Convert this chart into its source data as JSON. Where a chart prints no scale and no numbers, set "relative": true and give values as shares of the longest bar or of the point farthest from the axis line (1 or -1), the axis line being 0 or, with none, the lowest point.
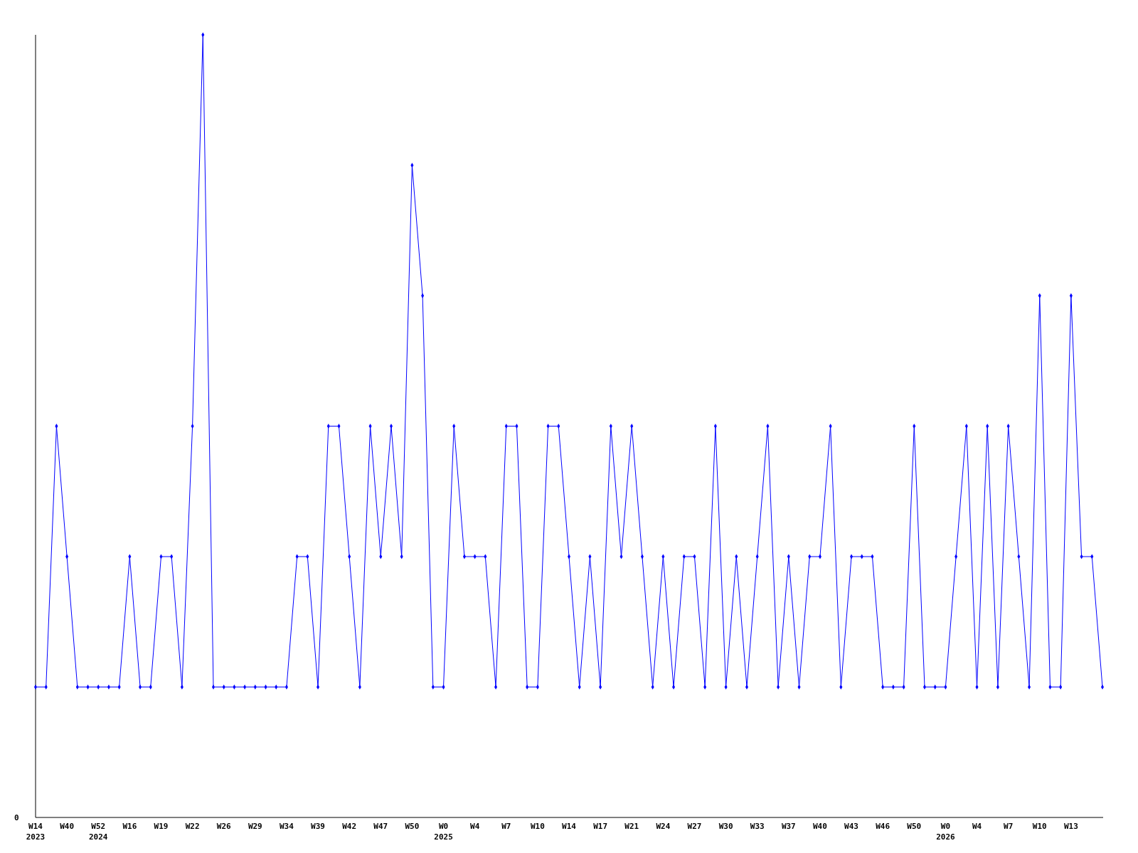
{
  "chart_data": {
    "type": "line",
    "relative": true,
    "marker": "diamond",
    "grid": false,
    "annotations": [
      "0"
    ],
    "categories": [
      "W14\n2023",
      null,
      null,
      "W40",
      null,
      null,
      "W52\n2024",
      null,
      null,
      "W16",
      null,
      null,
      "W19",
      null,
      null,
      "W22",
      null,
      null,
      "W26",
      null,
      null,
      "W29",
      null,
      null,
      "W34",
      null,
      null,
      "W39",
      null,
      null,
      "W42",
      null,
      null,
      "W47",
      null,
      null,
      "W50",
      null,
      null,
      "W0\n2025",
      null,
      null,
      "W4",
      null,
      null,
      "W7",
      null,
      null,
      "W10",
      null,
      null,
      "W14",
      null,
      null,
      "W17",
      null,
      null,
      "W21",
      null,
      null,
      "W24",
      null,
      null,
      "W27",
      null,
      null,
      "W30",
      null,
      null,
      "W33",
      null,
      null,
      "W37",
      null,
      null,
      "W40",
      null,
      null,
      "W43",
      null,
      null,
      "W46",
      null,
      null,
      "W50",
      null,
      null,
      "W0\n2026",
      null,
      null,
      "W4",
      null,
      null,
      "W7",
      null,
      null,
      "W10",
      null,
      null,
      "W13",
      null,
      null,
      null
    ],
    "series": [
      {
        "color": "#0000ff",
        "values": [
          0.1667,
          0.1667,
          0.5,
          0.3333,
          0.1667,
          0.1667,
          0.1667,
          0.1667,
          0.1667,
          0.3333,
          0.1667,
          0.1667,
          0.3333,
          0.3333,
          0.1667,
          0.5,
          1,
          0.1667,
          0.1667,
          0.1667,
          0.1667,
          0.1667,
          0.1667,
          0.1667,
          0.1667,
          0.3333,
          0.3333,
          0.1667,
          0.5,
          0.5,
          0.3333,
          0.1667,
          0.5,
          0.3333,
          0.5,
          0.3333,
          0.8333,
          0.6667,
          0.1667,
          0.1667,
          0.5,
          0.3333,
          0.3333,
          0.3333,
          0.1667,
          0.5,
          0.5,
          0.1667,
          0.1667,
          0.5,
          0.5,
          0.3333,
          0.1667,
          0.3333,
          0.1667,
          0.5,
          0.3333,
          0.5,
          0.3333,
          0.1667,
          0.3333,
          0.1667,
          0.3333,
          0.3333,
          0.1667,
          0.5,
          0.1667,
          0.3333,
          0.1667,
          0.3333,
          0.5,
          0.1667,
          0.3333,
          0.1667,
          0.3333,
          0.3333,
          0.5,
          0.1667,
          0.3333,
          0.3333,
          0.3333,
          0.1667,
          0.1667,
          0.1667,
          0.5,
          0.1667,
          0.1667,
          0.1667,
          0.3333,
          0.5,
          0.1667,
          0.5,
          0.1667,
          0.5,
          0.3333,
          0.1667,
          0.6667,
          0.1667,
          0.1667,
          0.6667,
          0.3333,
          0.3333,
          0.1667
        ]
      }
    ]
  }
}
